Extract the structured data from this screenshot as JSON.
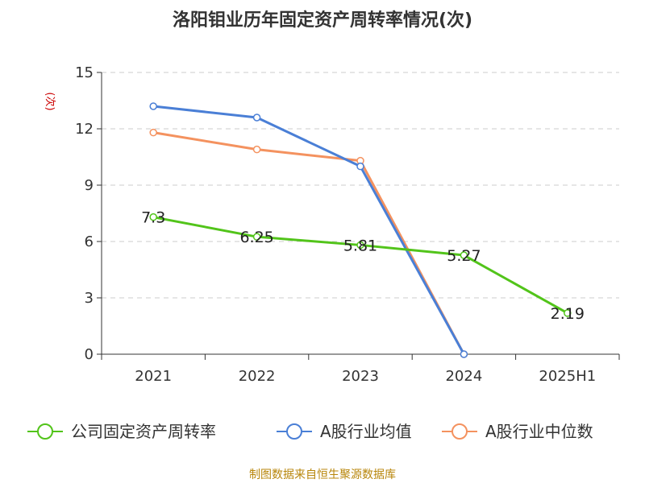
{
  "chart_data": {
    "type": "line",
    "title": "洛阳钼业历年固定资产周转率情况(次)",
    "ylabel": "(次)",
    "xlabel": "",
    "categories": [
      "2021",
      "2022",
      "2023",
      "2024",
      "2025H1"
    ],
    "ylim": [
      0,
      15
    ],
    "yticks": [
      0,
      3,
      6,
      9,
      12,
      15
    ],
    "grid": true,
    "legend_position": "bottom",
    "series": [
      {
        "name": "公司固定资产周转率",
        "color": "#52c41a",
        "values": [
          7.3,
          6.25,
          5.81,
          5.27,
          2.19
        ],
        "labels": [
          "7.3",
          "6.25",
          "5.81",
          "5.27",
          "2.19"
        ]
      },
      {
        "name": "A股行业均值",
        "color": "#4a7fd6",
        "values": [
          13.2,
          12.6,
          10.0,
          0,
          null
        ],
        "labels": []
      },
      {
        "name": "A股行业中位数",
        "color": "#f4925f",
        "values": [
          11.8,
          10.9,
          10.3,
          0,
          null
        ],
        "labels": []
      }
    ]
  },
  "source": "制图数据来自恒生聚源数据库"
}
